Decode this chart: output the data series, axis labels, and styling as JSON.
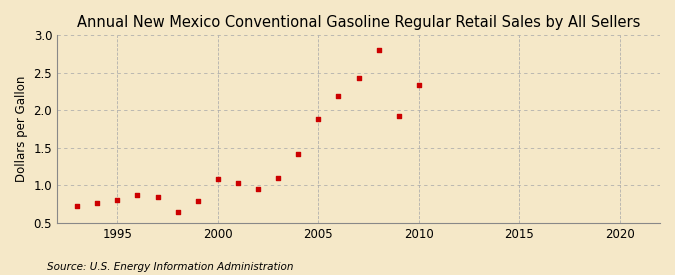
{
  "title": "Annual New Mexico Conventional Gasoline Regular Retail Sales by All Sellers",
  "ylabel": "Dollars per Gallon",
  "source": "Source: U.S. Energy Information Administration",
  "background_color": "#f5e8c8",
  "plot_bg_color": "#f5e8c8",
  "marker_color": "#cc0000",
  "years": [
    1993,
    1994,
    1995,
    1996,
    1997,
    1998,
    1999,
    2000,
    2001,
    2002,
    2003,
    2004,
    2005,
    2006,
    2007,
    2008,
    2009,
    2010
  ],
  "values": [
    0.72,
    0.77,
    0.8,
    0.87,
    0.84,
    0.65,
    0.79,
    1.09,
    1.03,
    0.95,
    1.1,
    1.42,
    1.89,
    2.19,
    2.43,
    2.8,
    1.93,
    2.34
  ],
  "xlim": [
    1992,
    2022
  ],
  "ylim": [
    0.5,
    3.0
  ],
  "yticks": [
    0.5,
    1.0,
    1.5,
    2.0,
    2.5,
    3.0
  ],
  "xticks": [
    1995,
    2000,
    2005,
    2010,
    2015,
    2020
  ],
  "grid_color": "#aaaaaa",
  "title_fontsize": 10.5,
  "label_fontsize": 8.5,
  "tick_fontsize": 8.5,
  "source_fontsize": 7.5
}
